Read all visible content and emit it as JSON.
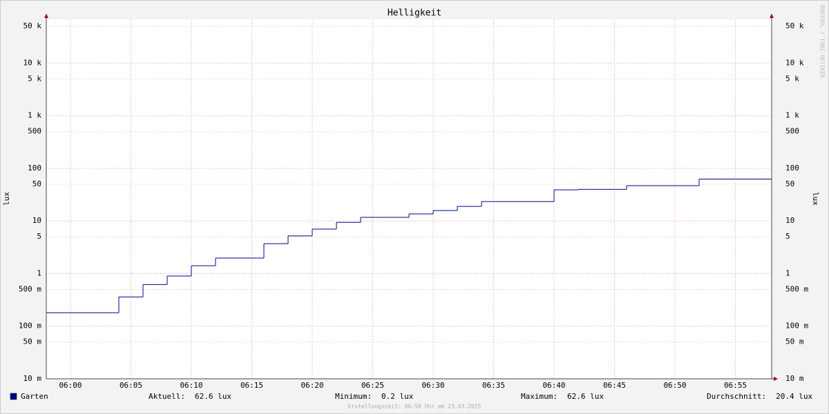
{
  "chart_data": {
    "type": "line",
    "step": "post",
    "title": "Helligkeit",
    "y_label": "lux",
    "y2_label": "lux",
    "log_scale": true,
    "grid": true,
    "watermark": "RRDTOOL / TOBI OETIKER",
    "footer": "Erstellungszeit: 06:58 Uhr am 23.03.2025",
    "x": [
      "05:58",
      "06:04",
      "06:06",
      "06:08",
      "06:10",
      "06:12",
      "06:16",
      "06:18",
      "06:20",
      "06:22",
      "06:24",
      "06:28",
      "06:30",
      "06:32",
      "06:34",
      "06:40",
      "06:42",
      "06:46",
      "06:52"
    ],
    "series": [
      {
        "name": "Garten",
        "color": "#00008b",
        "values": [
          0.18,
          0.36,
          0.62,
          0.9,
          1.41,
          1.97,
          3.7,
          5.2,
          7.0,
          9.4,
          11.7,
          13.6,
          15.8,
          18.9,
          23.4,
          39,
          40,
          46.8,
          62.6
        ]
      }
    ],
    "stats": [
      {
        "label": "Aktuell:",
        "value": "62.6 lux"
      },
      {
        "label": "Minimum:",
        "value": "0.2 lux"
      },
      {
        "label": "Maximum:",
        "value": "62.6 lux"
      },
      {
        "label": "Durchschnitt:",
        "value": "20.4 lux"
      }
    ],
    "xlim": [
      "05:58",
      "06:58"
    ],
    "xticks": [
      "06:00",
      "06:05",
      "06:10",
      "06:15",
      "06:20",
      "06:25",
      "06:30",
      "06:35",
      "06:40",
      "06:45",
      "06:50",
      "06:55"
    ],
    "ylim": [
      0.01,
      68000
    ],
    "yticks": [
      {
        "value": 0.01,
        "label": "10 m"
      },
      {
        "value": 0.05,
        "label": "50 m"
      },
      {
        "value": 0.1,
        "label": "100 m"
      },
      {
        "value": 0.5,
        "label": "500 m"
      },
      1,
      5,
      10,
      50,
      100,
      500,
      {
        "value": 1000,
        "label": "1 k"
      },
      {
        "value": 5000,
        "label": "5 k"
      },
      {
        "value": 10000,
        "label": "10 k"
      },
      {
        "value": 50000,
        "label": "50 k"
      }
    ]
  }
}
